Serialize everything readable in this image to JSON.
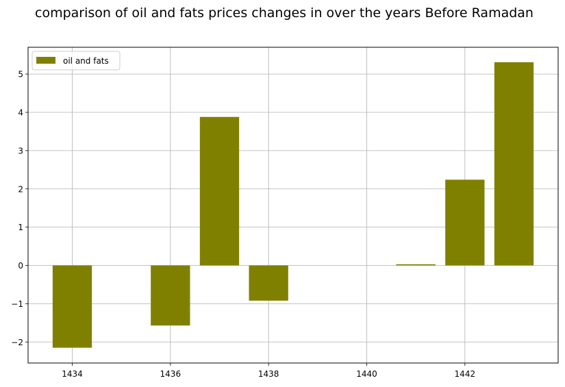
{
  "chart_data": {
    "type": "bar",
    "title": "comparison of oil and fats prices changes in over the years Before Ramadan",
    "xlabel": "",
    "ylabel": "",
    "series": [
      {
        "name": "oil and fats",
        "color": "#808000",
        "x": [
          1434,
          1436,
          1437,
          1438,
          1441,
          1442,
          1443
        ],
        "values": [
          -2.15,
          -1.57,
          3.88,
          -0.92,
          0.03,
          2.24,
          5.31
        ]
      }
    ],
    "xlim": [
      1433.1,
      1443.9
    ],
    "ylim": [
      -2.55,
      5.7
    ],
    "xticks": [
      1434,
      1436,
      1438,
      1440,
      1442
    ],
    "xtick_labels": [
      "1434",
      "1436",
      "1438",
      "1440",
      "1442"
    ],
    "yticks": [
      -2,
      -1,
      0,
      1,
      2,
      3,
      4,
      5
    ],
    "ytick_labels": [
      "−2",
      "−1",
      "0",
      "1",
      "2",
      "3",
      "4",
      "5"
    ],
    "grid": true,
    "legend_position": "upper left"
  }
}
